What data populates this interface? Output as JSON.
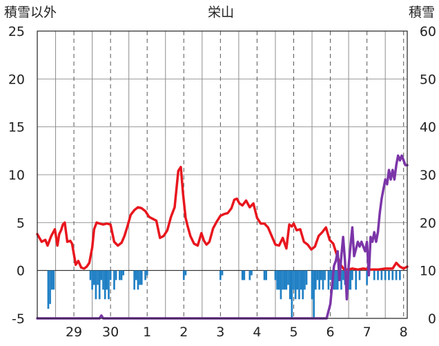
{
  "chart_data": {
    "type": "line",
    "title": "栄山",
    "ylabel_left": "積雪以外",
    "ylabel_right": "積雪",
    "ylim_left": [
      -5,
      25
    ],
    "ylim_right": [
      0,
      60
    ],
    "yticks_left": [
      "25",
      "20",
      "15",
      "10",
      "5",
      "0",
      "-5"
    ],
    "yticks_right": [
      "60",
      "50",
      "40",
      "30",
      "20",
      "10",
      "0"
    ],
    "x_unit": "day index (0 = midnight at start of 29th)",
    "xlim": [
      -0.5,
      9.6
    ],
    "xtick_labels": [
      "29",
      "30",
      "1",
      "2",
      "3",
      "4",
      "5",
      "6",
      "7",
      "8"
    ],
    "xtick_positions": [
      0.5,
      1.5,
      2.5,
      3.5,
      4.5,
      5.5,
      6.5,
      7.5,
      8.5,
      9.5
    ],
    "colors": {
      "temperature": "#e8161e",
      "precipitation": "#1f7fc4",
      "snow_depth": "#7b35a8"
    },
    "series": [
      {
        "name": "temperature",
        "axis": "left",
        "kind": "line",
        "x": [
          -0.5,
          -0.38,
          -0.28,
          -0.22,
          -0.12,
          -0.02,
          0.05,
          0.1,
          0.15,
          0.2,
          0.25,
          0.32,
          0.4,
          0.45,
          0.55,
          0.62,
          0.7,
          0.78,
          0.85,
          0.92,
          1.0,
          1.05,
          1.12,
          1.2,
          1.3,
          1.4,
          1.5,
          1.6,
          1.7,
          1.8,
          1.88,
          1.96,
          2.05,
          2.15,
          2.25,
          2.35,
          2.45,
          2.55,
          2.65,
          2.75,
          2.85,
          2.95,
          3.05,
          3.15,
          3.25,
          3.35,
          3.42,
          3.48,
          3.55,
          3.6,
          3.68,
          3.78,
          3.88,
          3.98,
          4.05,
          4.12,
          4.2,
          4.3,
          4.4,
          4.5,
          4.6,
          4.7,
          4.8,
          4.88,
          4.95,
          5.02,
          5.1,
          5.2,
          5.3,
          5.4,
          5.5,
          5.6,
          5.7,
          5.8,
          5.9,
          6.0,
          6.1,
          6.2,
          6.3,
          6.38,
          6.45,
          6.5,
          6.58,
          6.68,
          6.78,
          6.88,
          6.98,
          7.08,
          7.18,
          7.28,
          7.38,
          7.48,
          7.58,
          7.68,
          7.78,
          7.88,
          7.98,
          8.1,
          8.25,
          8.4,
          8.6,
          8.8,
          9.0,
          9.2,
          9.3,
          9.4,
          9.5,
          9.6
        ],
        "values": [
          3.8,
          3.0,
          3.2,
          2.6,
          3.6,
          4.3,
          2.6,
          3.8,
          4.2,
          4.8,
          5.0,
          3.0,
          3.1,
          2.8,
          0.6,
          1.0,
          0.3,
          0.2,
          0.4,
          0.8,
          2.4,
          4.3,
          5.0,
          4.9,
          4.8,
          4.9,
          4.8,
          3.0,
          2.6,
          2.9,
          3.6,
          4.6,
          5.8,
          6.3,
          6.6,
          6.5,
          6.2,
          5.6,
          5.4,
          5.2,
          3.4,
          3.6,
          4.2,
          5.6,
          6.6,
          10.4,
          10.8,
          8.0,
          5.5,
          4.7,
          3.6,
          2.8,
          2.6,
          3.9,
          3.1,
          2.7,
          3.0,
          4.4,
          5.1,
          5.7,
          5.9,
          6.0,
          6.5,
          7.4,
          7.5,
          7.0,
          6.8,
          7.3,
          6.6,
          7.0,
          5.5,
          4.9,
          4.9,
          4.5,
          3.6,
          2.7,
          2.6,
          3.4,
          2.3,
          4.8,
          4.6,
          4.9,
          4.2,
          4.3,
          3.0,
          2.7,
          2.2,
          2.5,
          3.6,
          4.0,
          4.5,
          3.2,
          2.8,
          1.6,
          0.6,
          0.1,
          0.1,
          0.2,
          0.1,
          0.2,
          0.1,
          0.1,
          0.2,
          0.2,
          0.8,
          0.4,
          0.2,
          0.4
        ]
      },
      {
        "name": "precipitation",
        "axis": "left",
        "kind": "bar",
        "x": [
          -0.2,
          -0.15,
          -0.1,
          -0.05,
          0.95,
          1.0,
          1.05,
          1.1,
          1.15,
          1.2,
          1.25,
          1.3,
          1.35,
          1.4,
          1.45,
          1.5,
          1.6,
          1.65,
          1.75,
          1.8,
          1.85,
          2.15,
          2.2,
          2.25,
          2.3,
          2.35,
          2.45,
          2.5,
          3.5,
          3.55,
          4.5,
          4.55,
          5.1,
          5.15,
          5.3,
          5.35,
          5.7,
          5.75,
          6.0,
          6.05,
          6.1,
          6.15,
          6.2,
          6.25,
          6.3,
          6.35,
          6.4,
          6.45,
          6.5,
          6.55,
          6.6,
          6.65,
          6.7,
          6.75,
          6.8,
          6.85,
          7.0,
          7.05,
          7.1,
          7.15,
          7.2,
          7.25,
          7.3,
          7.35,
          7.45,
          7.5,
          7.55,
          7.6,
          7.65,
          7.7,
          7.75,
          7.8,
          7.85,
          7.9,
          7.95,
          8.0,
          8.05,
          8.1,
          8.2,
          8.3,
          8.5,
          8.7,
          8.8,
          8.9,
          9.0,
          9.1,
          9.2,
          9.3,
          9.4
        ],
        "values": [
          -4.0,
          -3.5,
          -2.0,
          -2.0,
          -1.0,
          -2.0,
          -1.5,
          -3.0,
          -1.5,
          -3.0,
          -1.0,
          -2.0,
          -3.0,
          -2.0,
          -3.0,
          -1.0,
          -2.0,
          -1.0,
          -1.0,
          -1.0,
          -0.5,
          -2.0,
          -1.0,
          -2.0,
          -1.5,
          -1.5,
          -1.0,
          -0.5,
          -1.0,
          -0.5,
          -1.0,
          -0.5,
          -1.0,
          -1.0,
          -1.0,
          -0.5,
          -1.0,
          -1.0,
          -1.0,
          -2.0,
          -2.0,
          -3.0,
          -2.0,
          -2.0,
          -2.0,
          -1.5,
          -3.0,
          -5.0,
          -2.0,
          -3.0,
          -2.0,
          -3.0,
          -2.0,
          -3.0,
          -2.0,
          -1.5,
          -3.0,
          -5.0,
          -2.0,
          -1.0,
          -2.0,
          -1.0,
          -2.0,
          -1.0,
          -2.0,
          -1.0,
          -1.5,
          -2.0,
          -2.0,
          -2.0,
          -1.0,
          -2.0,
          -1.0,
          -1.5,
          -1.0,
          -2.0,
          -2.0,
          -1.0,
          -2.0,
          -1.0,
          -1.5,
          -1.0,
          -1.0,
          -1.0,
          -1.0,
          -1.0,
          -1.0,
          -1.0,
          -1.0
        ]
      },
      {
        "name": "snow_depth",
        "axis": "right",
        "kind": "line",
        "x": [
          -0.5,
          1.2,
          1.25,
          1.3,
          1.4,
          7.4,
          7.5,
          7.55,
          7.6,
          7.65,
          7.7,
          7.75,
          7.8,
          7.85,
          7.9,
          7.95,
          8.0,
          8.05,
          8.1,
          8.15,
          8.25,
          8.3,
          8.35,
          8.4,
          8.45,
          8.5,
          8.55,
          8.6,
          8.65,
          8.7,
          8.75,
          8.8,
          8.85,
          8.9,
          8.95,
          9.0,
          9.05,
          9.1,
          9.15,
          9.2,
          9.25,
          9.3,
          9.35,
          9.4,
          9.45,
          9.5,
          9.55,
          9.6
        ],
        "values": [
          0.0,
          0.0,
          0.6,
          0.0,
          0.0,
          0.0,
          3.0,
          7.0,
          11.0,
          12.0,
          14.0,
          8.0,
          13.0,
          17.0,
          12.0,
          4.0,
          11.0,
          15.0,
          19.0,
          13.0,
          16.0,
          15.0,
          16.0,
          15.0,
          14.0,
          16.0,
          9.0,
          17.0,
          16.0,
          18.0,
          16.0,
          18.0,
          22.0,
          25.0,
          27.0,
          29.0,
          28.0,
          31.0,
          29.0,
          31.0,
          29.0,
          32.0,
          34.0,
          33.0,
          34.0,
          33.0,
          32.0,
          32.0
        ]
      }
    ]
  }
}
